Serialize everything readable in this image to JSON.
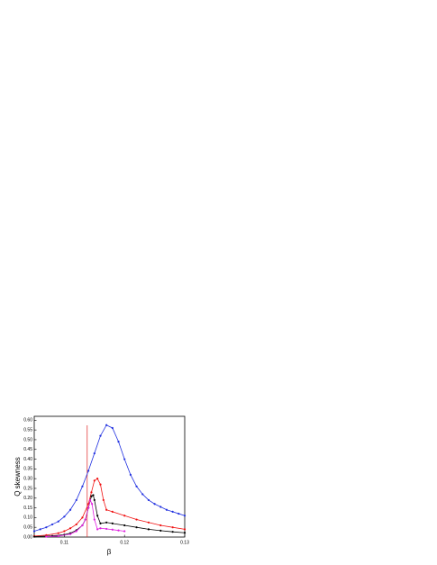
{
  "chart_data": {
    "type": "line",
    "x_label": "β",
    "y_label": "Q skewness",
    "xlim": [
      0.105,
      0.13
    ],
    "ylim": [
      0,
      0.62
    ],
    "xticks": [
      0.11,
      0.12,
      0.13
    ],
    "yticks": [
      {
        "value": 0,
        "label": "0.00"
      },
      {
        "value": 0.05,
        "label": "0.05"
      },
      {
        "value": 0.1,
        "label": "0.10"
      },
      {
        "value": 0.15,
        "label": "0.15"
      },
      {
        "value": 0.2,
        "label": "0.20"
      },
      {
        "value": 0.25,
        "label": "0.25"
      },
      {
        "value": 0.3,
        "label": "0.30"
      },
      {
        "value": 0.35,
        "label": "0.35"
      },
      {
        "value": 0.4,
        "label": "0.40"
      },
      {
        "value": 0.45,
        "label": "0.45"
      },
      {
        "value": 0.5,
        "label": "0.50"
      },
      {
        "value": 0.55,
        "label": "0.55"
      },
      {
        "value": 0.6,
        "label": "0.60"
      }
    ],
    "vline": {
      "x": 0.1138,
      "color": "#e02020"
    },
    "series": [
      {
        "color": "#2030e0",
        "x": [
          0.105,
          0.106,
          0.107,
          0.108,
          0.109,
          0.11,
          0.111,
          0.112,
          0.113,
          0.114,
          0.115,
          0.116,
          0.117,
          0.118,
          0.119,
          0.12,
          0.121,
          0.122,
          0.123,
          0.124,
          0.125,
          0.126,
          0.127,
          0.128,
          0.129,
          0.13
        ],
        "values": [
          0.03,
          0.04,
          0.05,
          0.065,
          0.08,
          0.105,
          0.14,
          0.19,
          0.26,
          0.34,
          0.43,
          0.52,
          0.575,
          0.56,
          0.49,
          0.4,
          0.32,
          0.26,
          0.22,
          0.19,
          0.17,
          0.155,
          0.14,
          0.13,
          0.12,
          0.11
        ]
      },
      {
        "color": "#f01010",
        "x": [
          0.105,
          0.107,
          0.109,
          0.11,
          0.111,
          0.112,
          0.113,
          0.114,
          0.1145,
          0.115,
          0.1155,
          0.116,
          0.1165,
          0.117,
          0.118,
          0.12,
          0.122,
          0.124,
          0.126,
          0.128,
          0.13
        ],
        "values": [
          0.005,
          0.01,
          0.02,
          0.03,
          0.045,
          0.065,
          0.1,
          0.17,
          0.23,
          0.29,
          0.3,
          0.27,
          0.19,
          0.14,
          0.13,
          0.11,
          0.09,
          0.075,
          0.06,
          0.05,
          0.04
        ]
      },
      {
        "color": "#000000",
        "x": [
          0.105,
          0.108,
          0.11,
          0.111,
          0.112,
          0.113,
          0.1135,
          0.114,
          0.1145,
          0.1148,
          0.115,
          0.1155,
          0.116,
          0.117,
          0.118,
          0.12,
          0.122,
          0.124,
          0.126,
          0.128,
          0.13
        ],
        "values": [
          0.002,
          0.006,
          0.012,
          0.02,
          0.035,
          0.06,
          0.09,
          0.15,
          0.21,
          0.215,
          0.19,
          0.11,
          0.07,
          0.075,
          0.07,
          0.06,
          0.05,
          0.04,
          0.033,
          0.027,
          0.022
        ]
      },
      {
        "color": "#e020e0",
        "x": [
          0.107,
          0.109,
          0.111,
          0.112,
          0.113,
          0.1135,
          0.114,
          0.1143,
          0.1146,
          0.115,
          0.1155,
          0.116,
          0.117,
          0.118,
          0.119,
          0.12
        ],
        "values": [
          0.002,
          0.005,
          0.015,
          0.03,
          0.06,
          0.09,
          0.15,
          0.19,
          0.17,
          0.09,
          0.04,
          0.045,
          0.042,
          0.038,
          0.034,
          0.03
        ]
      }
    ]
  }
}
